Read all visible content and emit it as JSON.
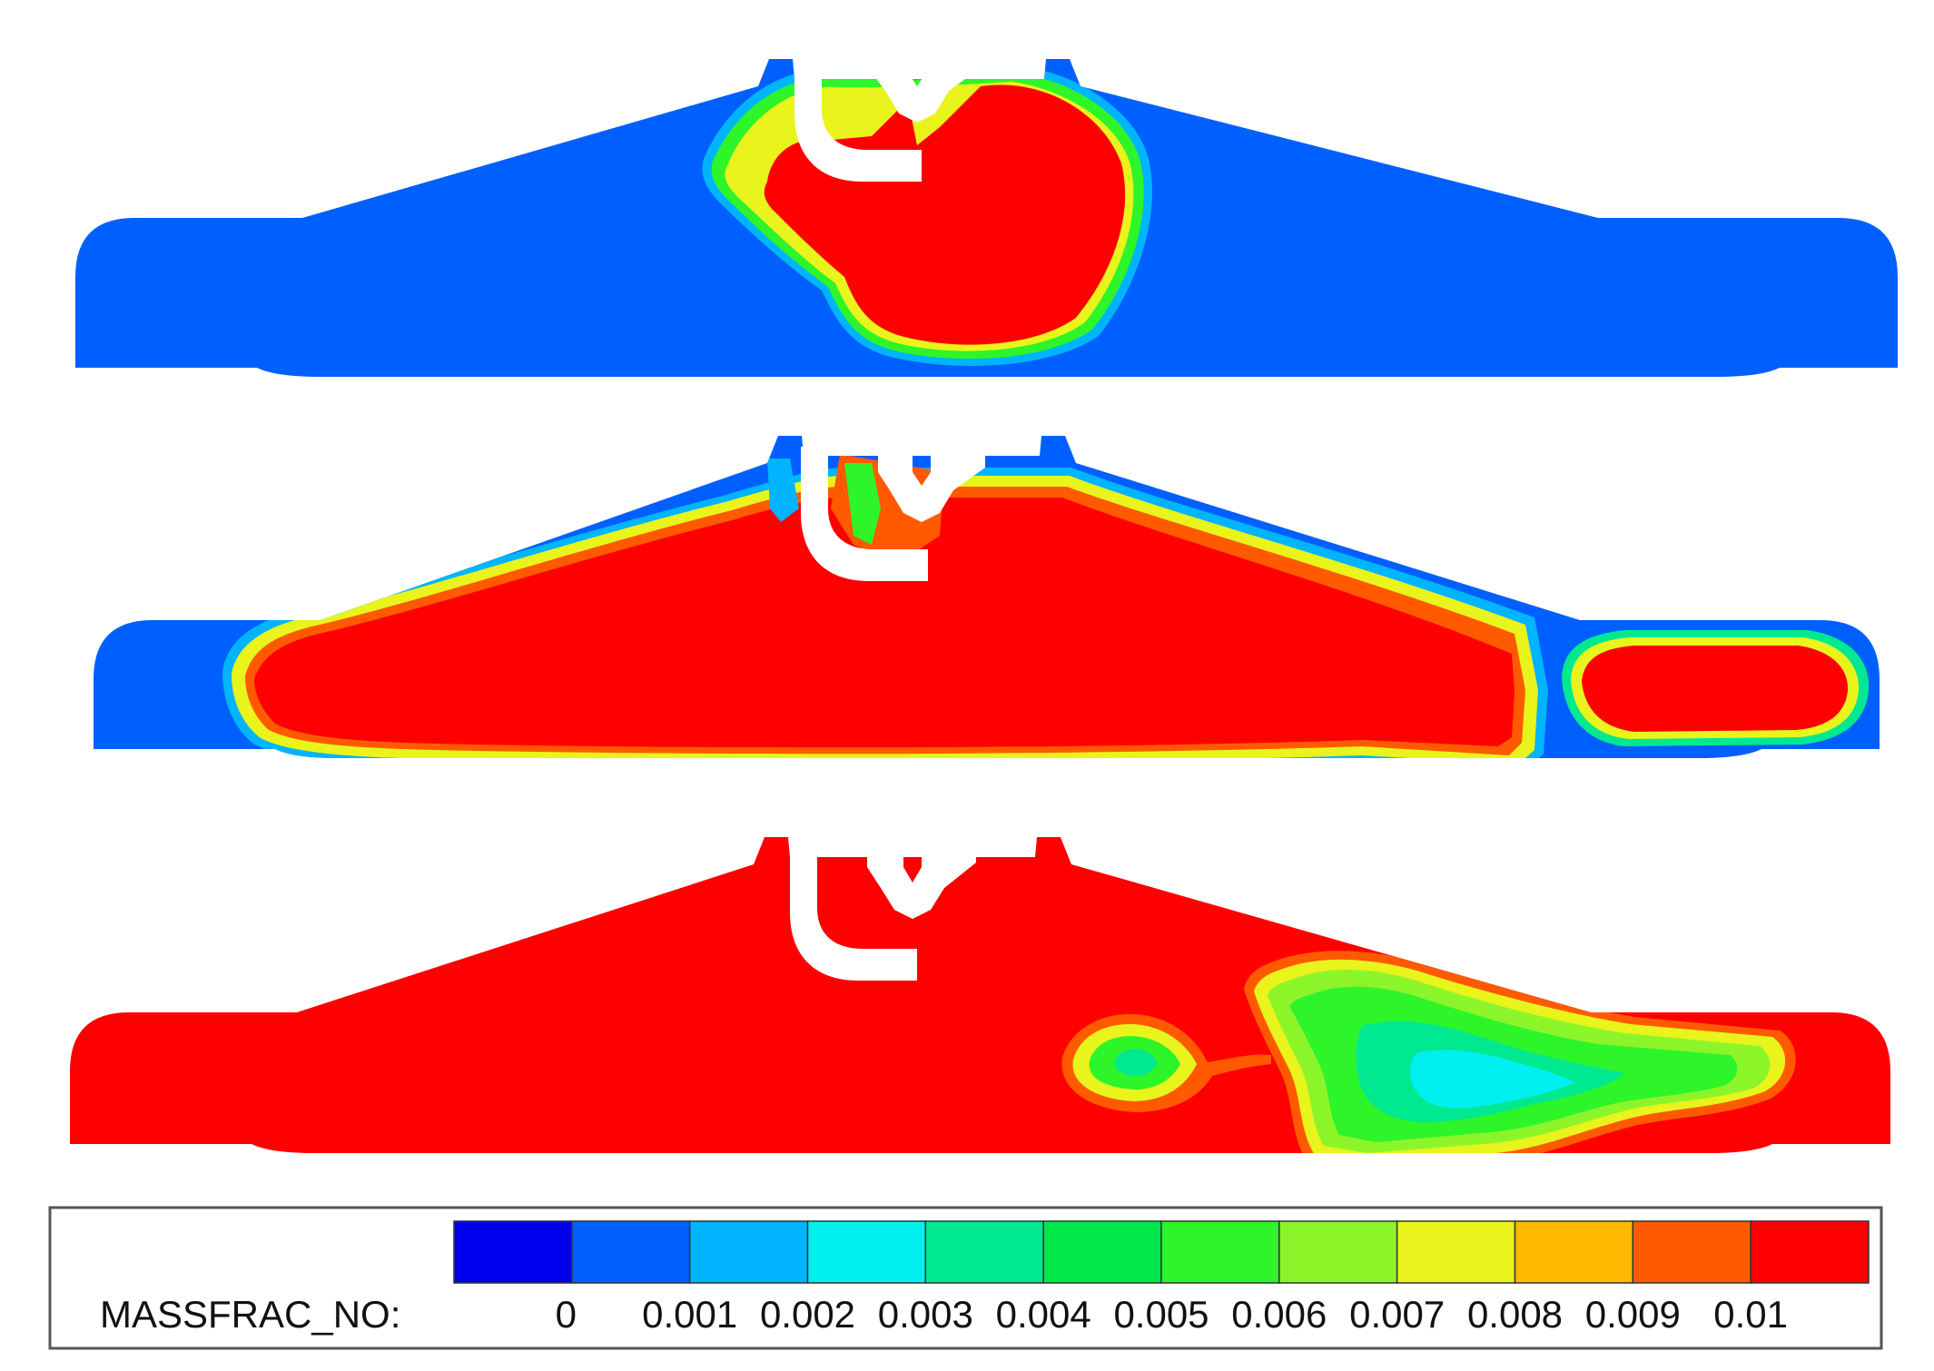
{
  "legend": {
    "label": "MASSFRAC_NO:",
    "ticks": [
      "0",
      "0.001",
      "0.002",
      "0.003",
      "0.004",
      "0.005",
      "0.006",
      "0.007",
      "0.008",
      "0.009",
      "0.01"
    ],
    "colors": [
      "#0000ee",
      "#0060ff",
      "#00b4ff",
      "#00f0f0",
      "#00e890",
      "#00e84a",
      "#2ef42a",
      "#8cf52a",
      "#e8f41c",
      "#ffb900",
      "#ff5a00",
      "#ff0000"
    ]
  },
  "palette": {
    "base_blue": "#0060ff",
    "red": "#ff0000",
    "orange": "#ff5a00",
    "amber": "#ffb900",
    "yellow": "#e8f41c",
    "lime": "#8cf52a",
    "green": "#2ef42a",
    "mint": "#00e890",
    "cyan": "#00f0f0",
    "sky": "#00b4ff"
  },
  "panels": [
    {
      "field": "early"
    },
    {
      "field": "middle"
    },
    {
      "field": "late"
    }
  ]
}
